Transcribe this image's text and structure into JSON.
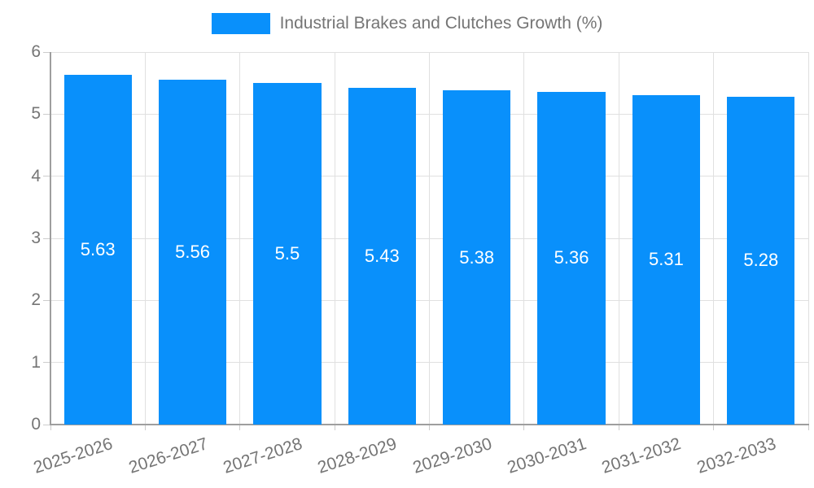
{
  "chart_data": {
    "type": "bar",
    "title": "Industrial Brakes and Clutches Growth (%)",
    "categories": [
      "2025-2026",
      "2026-2027",
      "2027-2028",
      "2028-2029",
      "2029-2030",
      "2030-2031",
      "2031-2032",
      "2032-2033"
    ],
    "values": [
      5.63,
      5.56,
      5.5,
      5.43,
      5.38,
      5.36,
      5.31,
      5.28
    ],
    "bar_value_labels": [
      "5.63",
      "5.56",
      "5.5",
      "5.43",
      "5.38",
      "5.36",
      "5.31",
      "5.28"
    ],
    "xlabel": "",
    "ylabel": "",
    "ylim": [
      0,
      6
    ],
    "yticks": [
      0,
      1,
      2,
      3,
      4,
      5,
      6
    ],
    "grid": true,
    "legend_position": "top",
    "legend_entries": [
      "Industrial Brakes and Clutches Growth (%)"
    ]
  },
  "colors": {
    "bar": "#0990FB",
    "grid": "#E0E0E0",
    "tick": "#CCCCCC",
    "axis": "#9E9E9E",
    "muted_text": "#757575",
    "value_label_text": "#FFFFFF",
    "background": "#FFFFFF"
  }
}
